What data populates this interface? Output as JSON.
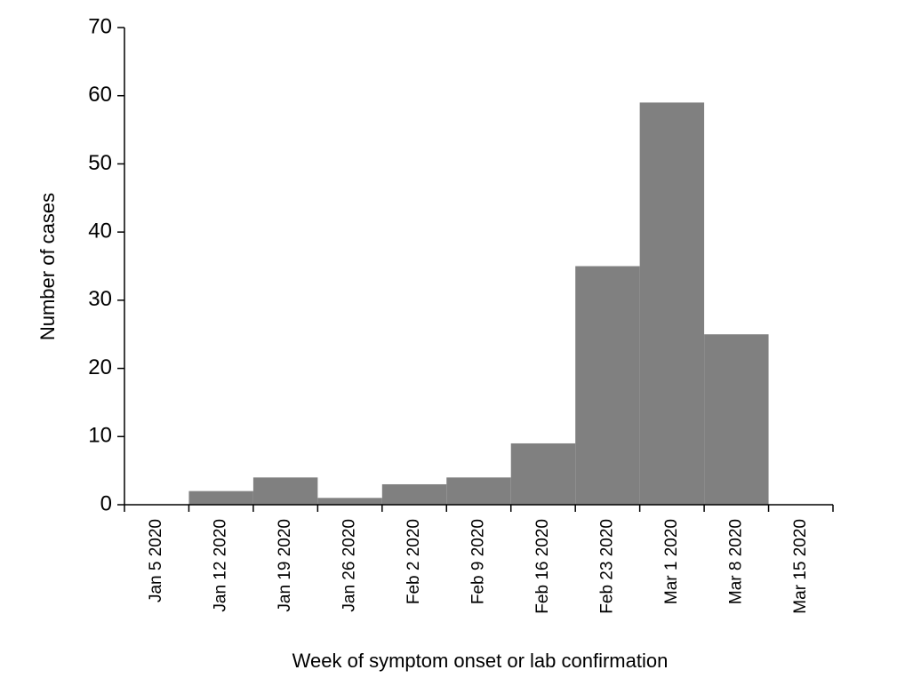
{
  "chart_data": {
    "type": "bar",
    "x_label": "Week of symptom onset or lab confirmation",
    "y_label": "Number of cases",
    "categories": [
      "Jan 5 2020",
      "Jan 12 2020",
      "Jan 19 2020",
      "Jan 26 2020",
      "Feb 2 2020",
      "Feb 9 2020",
      "Feb 16 2020",
      "Feb 23 2020",
      "Mar 1 2020",
      "Mar 8 2020",
      "Mar 15 2020"
    ],
    "values": [
      0,
      2,
      4,
      1,
      3,
      4,
      9,
      35,
      59,
      25,
      0
    ],
    "color": "#808080",
    "ylim": [
      0,
      70
    ],
    "yticks": [
      0,
      10,
      20,
      30,
      40,
      50,
      60,
      70
    ],
    "grid": false
  }
}
